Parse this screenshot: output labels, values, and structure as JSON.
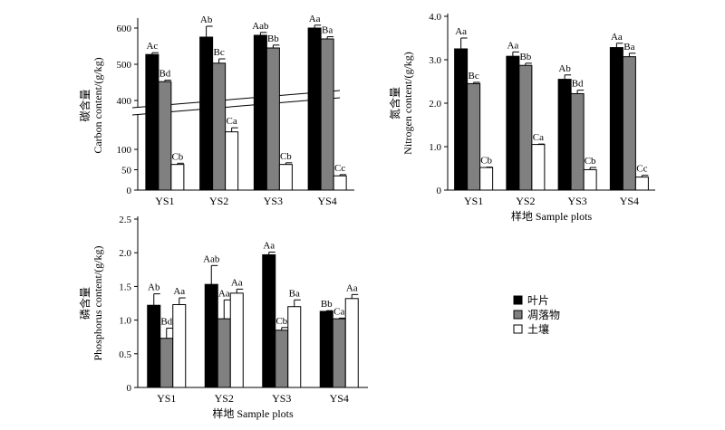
{
  "legend": {
    "items": [
      {
        "label": "叶片",
        "color": "#000000"
      },
      {
        "label": "凋落物",
        "color": "#808080"
      },
      {
        "label": "土壤",
        "color": "#ffffff"
      }
    ]
  },
  "chart_data": [
    {
      "id": "carbon",
      "type": "bar",
      "categories": [
        "YS1",
        "YS2",
        "YS3",
        "YS4"
      ],
      "ylabel": "Carbon content/(g/kg)",
      "ylabel_cn": "碳含量",
      "xlabel": "",
      "axis_break": {
        "lower": [
          0,
          200
        ],
        "upper": [
          400,
          620
        ]
      },
      "yticks": [
        0,
        50,
        100,
        400,
        500,
        600
      ],
      "series": [
        {
          "name": "叶片",
          "values": [
            527,
            575,
            580,
            600
          ],
          "errors": [
            5,
            30,
            8,
            8
          ],
          "labels": [
            "Ac",
            "Ab",
            "Aab",
            "Aa"
          ]
        },
        {
          "name": "凋落物",
          "values": [
            452,
            503,
            545,
            570
          ],
          "errors": [
            4,
            12,
            8,
            6
          ],
          "labels": [
            "Bd",
            "Bc",
            "Bb",
            "Ba"
          ]
        },
        {
          "name": "土壤",
          "values": [
            63,
            143,
            63,
            35
          ],
          "errors": [
            3,
            10,
            4,
            3
          ],
          "labels": [
            "Cb",
            "Ca",
            "Cb",
            "Cc"
          ]
        }
      ]
    },
    {
      "id": "nitrogen",
      "type": "bar",
      "categories": [
        "YS1",
        "YS2",
        "YS3",
        "YS4"
      ],
      "ylabel": "Nitrogen content/(g/kg)",
      "ylabel_cn": "氮含量",
      "xlabel": "样地 Sample plots",
      "ylim": [
        0,
        4
      ],
      "yticks": [
        "0",
        "1.0",
        "2.0",
        "3.0",
        "4.0"
      ],
      "series": [
        {
          "name": "叶片",
          "values": [
            3.25,
            3.08,
            2.55,
            3.28
          ],
          "errors": [
            0.25,
            0.1,
            0.1,
            0.1
          ],
          "labels": [
            "Aa",
            "Aa",
            "Ab",
            "Aa"
          ]
        },
        {
          "name": "凋落物",
          "values": [
            2.45,
            2.87,
            2.22,
            3.07
          ],
          "errors": [
            0.03,
            0.05,
            0.08,
            0.08
          ],
          "labels": [
            "Bc",
            "Bb",
            "Bd",
            "Ba"
          ]
        },
        {
          "name": "土壤",
          "values": [
            0.52,
            1.05,
            0.47,
            0.3
          ],
          "errors": [
            0.01,
            0.01,
            0.05,
            0.04
          ],
          "labels": [
            "Cb",
            "Ca",
            "Cb",
            "Cc"
          ]
        }
      ]
    },
    {
      "id": "phosphorus",
      "type": "bar",
      "categories": [
        "YS1",
        "YS2",
        "YS3",
        "YS4"
      ],
      "ylabel": "Phosphorus content/(g/kg)",
      "ylabel_cn": "磷含量",
      "xlabel": "样地 Sample plots",
      "ylim": [
        0,
        2.5
      ],
      "yticks": [
        "0",
        "0.5",
        "1.0",
        "1.5",
        "2.0",
        "2.5"
      ],
      "series": [
        {
          "name": "叶片",
          "values": [
            1.22,
            1.53,
            1.97,
            1.13
          ],
          "errors": [
            0.17,
            0.28,
            0.04,
            0.01
          ],
          "labels": [
            "Ab",
            "Aab",
            "Aa",
            "Bb"
          ]
        },
        {
          "name": "凋落物",
          "values": [
            0.73,
            1.02,
            0.85,
            1.02
          ],
          "errors": [
            0.15,
            0.28,
            0.04,
            0.01
          ],
          "labels": [
            "Bd",
            "Aa",
            "Cb",
            "Ca"
          ]
        },
        {
          "name": "土壤",
          "values": [
            1.23,
            1.4,
            1.2,
            1.32
          ],
          "errors": [
            0.1,
            0.06,
            0.1,
            0.06
          ],
          "labels": [
            "Aa",
            "Aa",
            "Ba",
            "Aa"
          ]
        }
      ]
    }
  ]
}
